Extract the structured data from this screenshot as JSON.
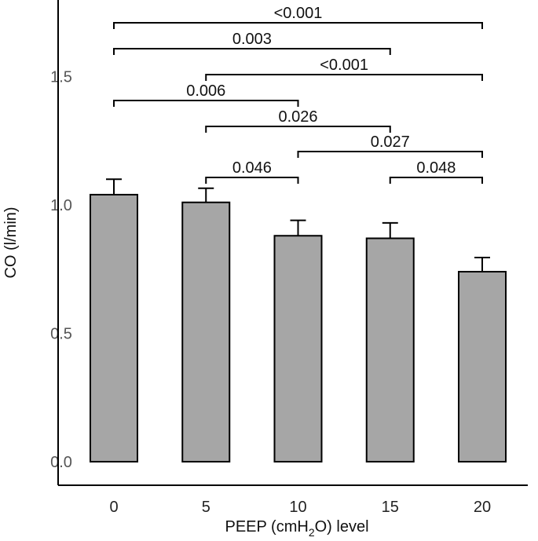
{
  "chart_data": {
    "type": "bar",
    "categories": [
      "0",
      "5",
      "10",
      "15",
      "20"
    ],
    "values": [
      1.04,
      1.01,
      0.88,
      0.87,
      0.74
    ],
    "errors": [
      0.06,
      0.055,
      0.06,
      0.06,
      0.055
    ],
    "xlabel_parts": [
      "PEEP (cmH",
      "2",
      "O) level"
    ],
    "ylabel": "CO (l/min)",
    "yticks": [
      "0.0",
      "0.5",
      "1.0",
      "1.5"
    ],
    "ylim": [
      0,
      1.75
    ],
    "grid": false,
    "bar_color": "#a6a6a6",
    "comparisons": [
      {
        "from": "0",
        "to": "20",
        "label": "<0.001"
      },
      {
        "from": "0",
        "to": "15",
        "label": "0.003"
      },
      {
        "from": "5",
        "to": "20",
        "label": "<0.001"
      },
      {
        "from": "0",
        "to": "10",
        "label": "0.006"
      },
      {
        "from": "5",
        "to": "15",
        "label": "0.026"
      },
      {
        "from": "10",
        "to": "20",
        "label": "0.027"
      },
      {
        "from": "5",
        "to": "10",
        "label": "0.046"
      },
      {
        "from": "15",
        "to": "20",
        "label": "0.048"
      }
    ]
  }
}
